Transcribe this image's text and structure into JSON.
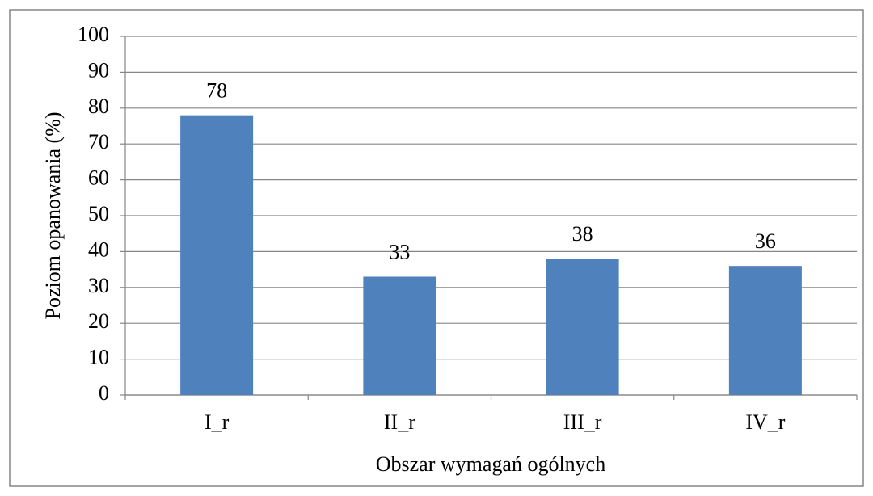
{
  "chart_data": {
    "type": "bar",
    "x_label": "Obszar wymagań ogólnych",
    "y_label": "Poziom opanowania (%)",
    "categories": [
      "I_r",
      "II_r",
      "III_r",
      "IV_r"
    ],
    "values": [
      78,
      33,
      38,
      36
    ],
    "color": "#4f81bd",
    "ylim": [
      0,
      100
    ],
    "yticks": [
      0,
      10,
      20,
      30,
      40,
      50,
      60,
      70,
      80,
      90,
      100
    ],
    "grid": true
  }
}
